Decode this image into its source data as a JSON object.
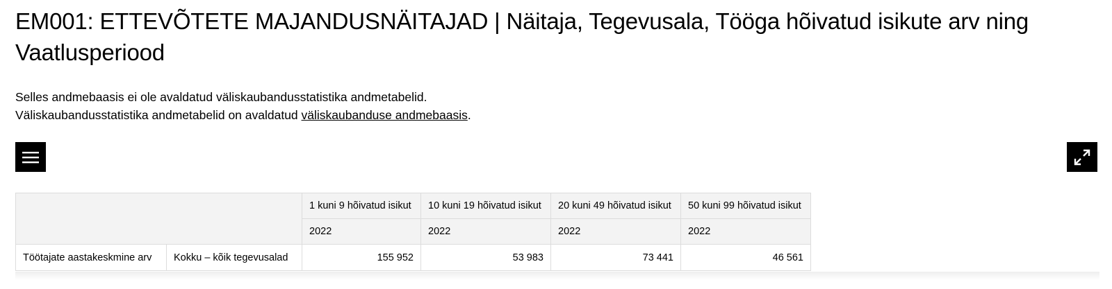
{
  "header": {
    "title": "EM001: ETTEVÕTETE MAJANDUSNÄITAJAD | Näitaja, Tegevusala, Tööga hõivatud isikute arv ning Vaatlusperiood"
  },
  "notice": {
    "line1": "Selles andmebaasis ei ole avaldatud väliskaubandusstatistika andmetabelid.",
    "line2_text": "Väliskaubandusstatistika andmetabelid on avaldatud ",
    "line2_link": "väliskaubanduse andmebaasis",
    "line2_end": "."
  },
  "table": {
    "columns": [
      "1 kuni 9 hõivatud isikut",
      "10 kuni 19 hõivatud isikut",
      "20 kuni 49 hõivatud isikut",
      "50 kuni 99 hõivatud isikut"
    ],
    "periods": [
      "2022",
      "2022",
      "2022",
      "2022"
    ],
    "rows": [
      [
        "Töötajate aastakeskmine arv",
        "Kokku – kõik tegevusalad",
        "155 952",
        "53 983",
        "73 441",
        "46 561"
      ]
    ]
  }
}
